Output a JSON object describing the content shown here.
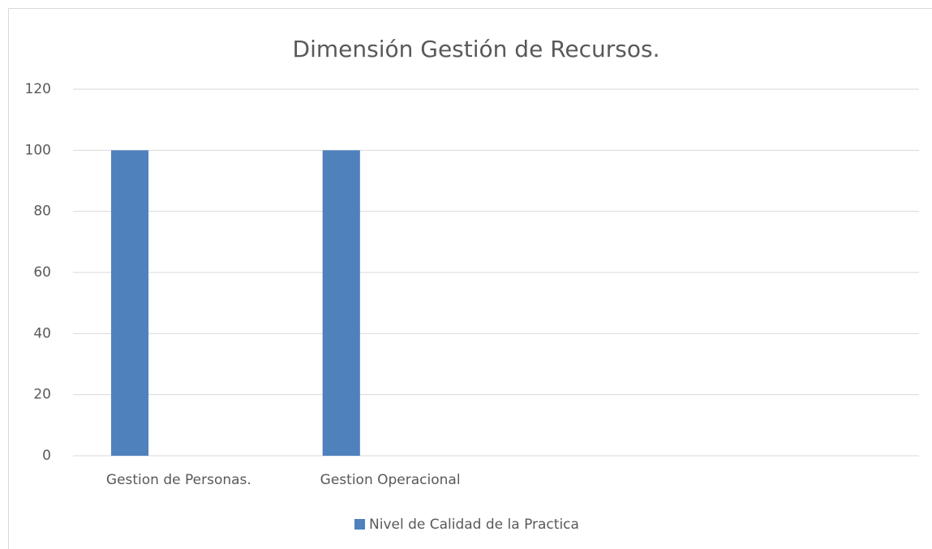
{
  "chart_data": {
    "type": "bar",
    "title": "Dimensión Gestión de Recursos.",
    "categories": [
      "Gestion de Personas.",
      "Gestion Operacional",
      null,
      null
    ],
    "series": [
      {
        "name": "Nivel de Calidad de la Practica",
        "color": "#4f81bd",
        "values": [
          100,
          100,
          null,
          null
        ]
      }
    ],
    "ylim": [
      0,
      120
    ],
    "yticks": [
      0,
      20,
      40,
      60,
      80,
      100,
      120
    ],
    "grid": true,
    "legend": "bottom"
  }
}
